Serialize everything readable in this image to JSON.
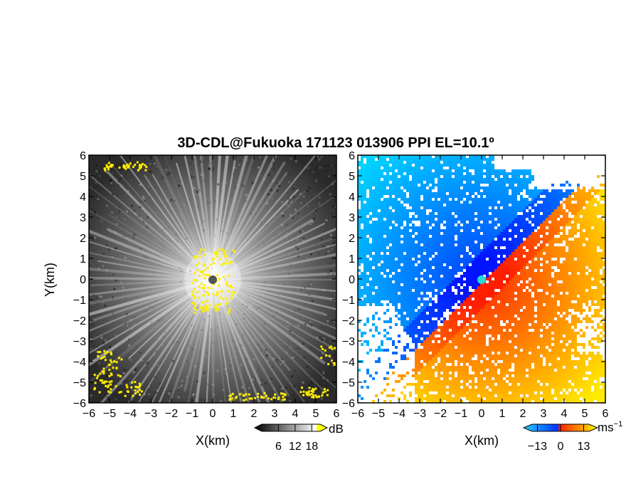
{
  "chart_data": [
    {
      "type": "heatmap",
      "panel": "left",
      "title": "3D-CDL@Fukuoka 171123 013906 PPI EL=10.1º",
      "xlabel": "X(km)",
      "ylabel": "Y(km)",
      "xlim": [
        -6,
        6
      ],
      "ylim": [
        -6,
        6
      ],
      "xticks": [
        "−6",
        "−5",
        "−4",
        "−3",
        "−2",
        "−1",
        "0",
        "1",
        "2",
        "3",
        "4",
        "5",
        "6"
      ],
      "yticks": [
        "−6",
        "−5",
        "−4",
        "−3",
        "−2",
        "−1",
        "0",
        "1",
        "2",
        "3",
        "4",
        "5",
        "6"
      ],
      "colorbar": {
        "ticks": [
          "6",
          "12",
          "18"
        ],
        "values": [
          6,
          12,
          18
        ],
        "range": [
          0,
          21
        ],
        "unit": "dB",
        "colors": [
          "#000000",
          "#ffffff",
          "#ffff00"
        ]
      }
    },
    {
      "type": "heatmap",
      "panel": "right",
      "xlabel": "X(km)",
      "xlim": [
        -6,
        6
      ],
      "ylim": [
        -6,
        6
      ],
      "xticks": [
        "−6",
        "−5",
        "−4",
        "−3",
        "−2",
        "−1",
        "0",
        "1",
        "2",
        "3",
        "4",
        "5",
        "6"
      ],
      "yticks": [
        "−6",
        "−5",
        "−4",
        "−3",
        "−2",
        "−1",
        "0",
        "1",
        "2",
        "3",
        "4",
        "5",
        "6"
      ],
      "colorbar": {
        "ticks": [
          "−13",
          "0",
          "13"
        ],
        "values": [
          -13,
          0,
          13
        ],
        "range": [
          -16,
          16
        ],
        "unit": "ms",
        "unit_exp": "−1",
        "colors": [
          "#2ad0ff",
          "#0033ff",
          "#ff2a00",
          "#ffff00"
        ]
      }
    }
  ]
}
